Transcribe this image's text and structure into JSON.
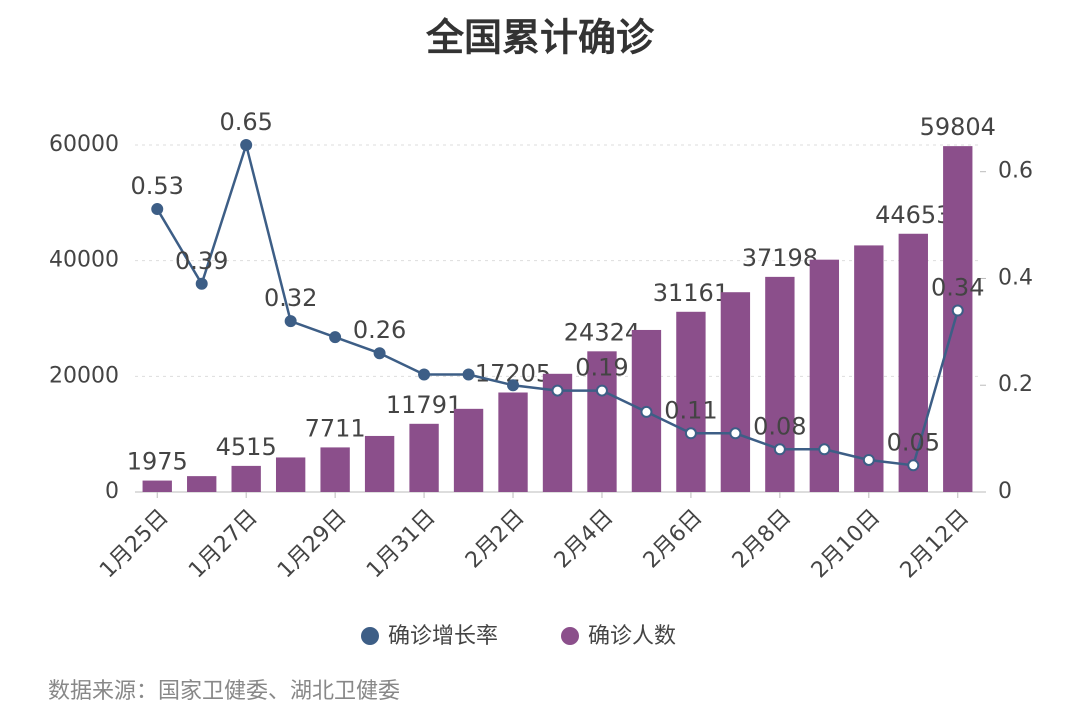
{
  "chart_data": {
    "type": "bar-line",
    "title": "全国累计确诊",
    "source": "数据来源：国家卫健委、湖北卫健委",
    "categories": [
      "1月25日",
      null,
      "1月27日",
      null,
      "1月29日",
      null,
      "1月31日",
      null,
      "2月2日",
      null,
      "2月4日",
      null,
      "2月6日",
      null,
      "2月8日",
      null,
      "2月10日",
      null,
      "2月12日"
    ],
    "ylim": [
      0,
      60000
    ],
    "yticks": [
      0,
      20000,
      40000,
      60000
    ],
    "y2lim": [
      0,
      0.65
    ],
    "y2ticks": [
      0,
      0.2,
      0.4,
      0.6
    ],
    "grid": true,
    "legend": "bottom",
    "series": [
      {
        "name": "确诊增长率",
        "type": "line",
        "axis": "y2",
        "color": "#3d5e86",
        "values": [
          0.53,
          0.39,
          0.65,
          0.32,
          0.29,
          0.26,
          0.22,
          0.22,
          0.2,
          0.19,
          0.19,
          0.15,
          0.11,
          0.11,
          0.08,
          0.08,
          0.06,
          0.05,
          0.34
        ],
        "value_labels": [
          "0.53",
          "0.39",
          "0.65",
          "0.32",
          null,
          "0.26",
          null,
          null,
          null,
          null,
          "0.19",
          null,
          "0.11",
          null,
          "0.08",
          null,
          null,
          "0.05",
          "0.34"
        ]
      },
      {
        "name": "确诊人数",
        "type": "bar",
        "color": "#8b4f8b",
        "values": [
          1975,
          2744,
          4515,
          5974,
          7711,
          9692,
          11791,
          14380,
          17205,
          20438,
          24324,
          28018,
          31161,
          34546,
          37198,
          40171,
          42638,
          44653,
          59804
        ],
        "value_labels": [
          "1975",
          null,
          "4515",
          null,
          "7711",
          null,
          "11791",
          null,
          "17205",
          null,
          "24324",
          null,
          "31161",
          null,
          "37198",
          null,
          null,
          "44653",
          "59804"
        ]
      }
    ]
  }
}
